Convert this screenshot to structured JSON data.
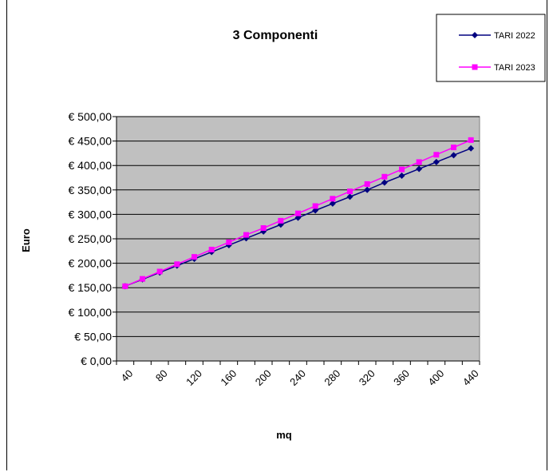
{
  "chart_data": {
    "type": "line",
    "title": "3 Componenti",
    "xlabel": "mq",
    "ylabel": "Euro",
    "x": [
      40,
      60,
      80,
      100,
      120,
      140,
      160,
      180,
      200,
      220,
      240,
      260,
      280,
      300,
      320,
      340,
      360,
      380,
      400,
      420,
      440
    ],
    "x_tick_labels": [
      "40",
      "80",
      "120",
      "160",
      "200",
      "240",
      "280",
      "320",
      "360",
      "400",
      "440"
    ],
    "y_tick_labels": [
      "€ 0,00",
      "€ 50,00",
      "€ 100,00",
      "€ 150,00",
      "€ 200,00",
      "€ 250,00",
      "€ 300,00",
      "€ 350,00",
      "€ 400,00",
      "€ 450,00",
      "€ 500,00"
    ],
    "ylim": [
      0,
      500
    ],
    "grid": true,
    "legend_position": "top-right",
    "series": [
      {
        "name": "TARI 2022",
        "color": "#000080",
        "marker": "diamond",
        "values": [
          153,
          167,
          181,
          195,
          209,
          223,
          237,
          251,
          265,
          279,
          293,
          308,
          322,
          336,
          350,
          365,
          379,
          393,
          407,
          421,
          435
        ]
      },
      {
        "name": "TARI 2023",
        "color": "#FF00FF",
        "marker": "square",
        "values": [
          153,
          168,
          183,
          198,
          213,
          228,
          243,
          258,
          272,
          287,
          302,
          317,
          332,
          347,
          362,
          377,
          392,
          407,
          422,
          437,
          452
        ]
      }
    ],
    "colors": {
      "plot_background": "#C0C0C0",
      "gridline": "#000000"
    }
  }
}
